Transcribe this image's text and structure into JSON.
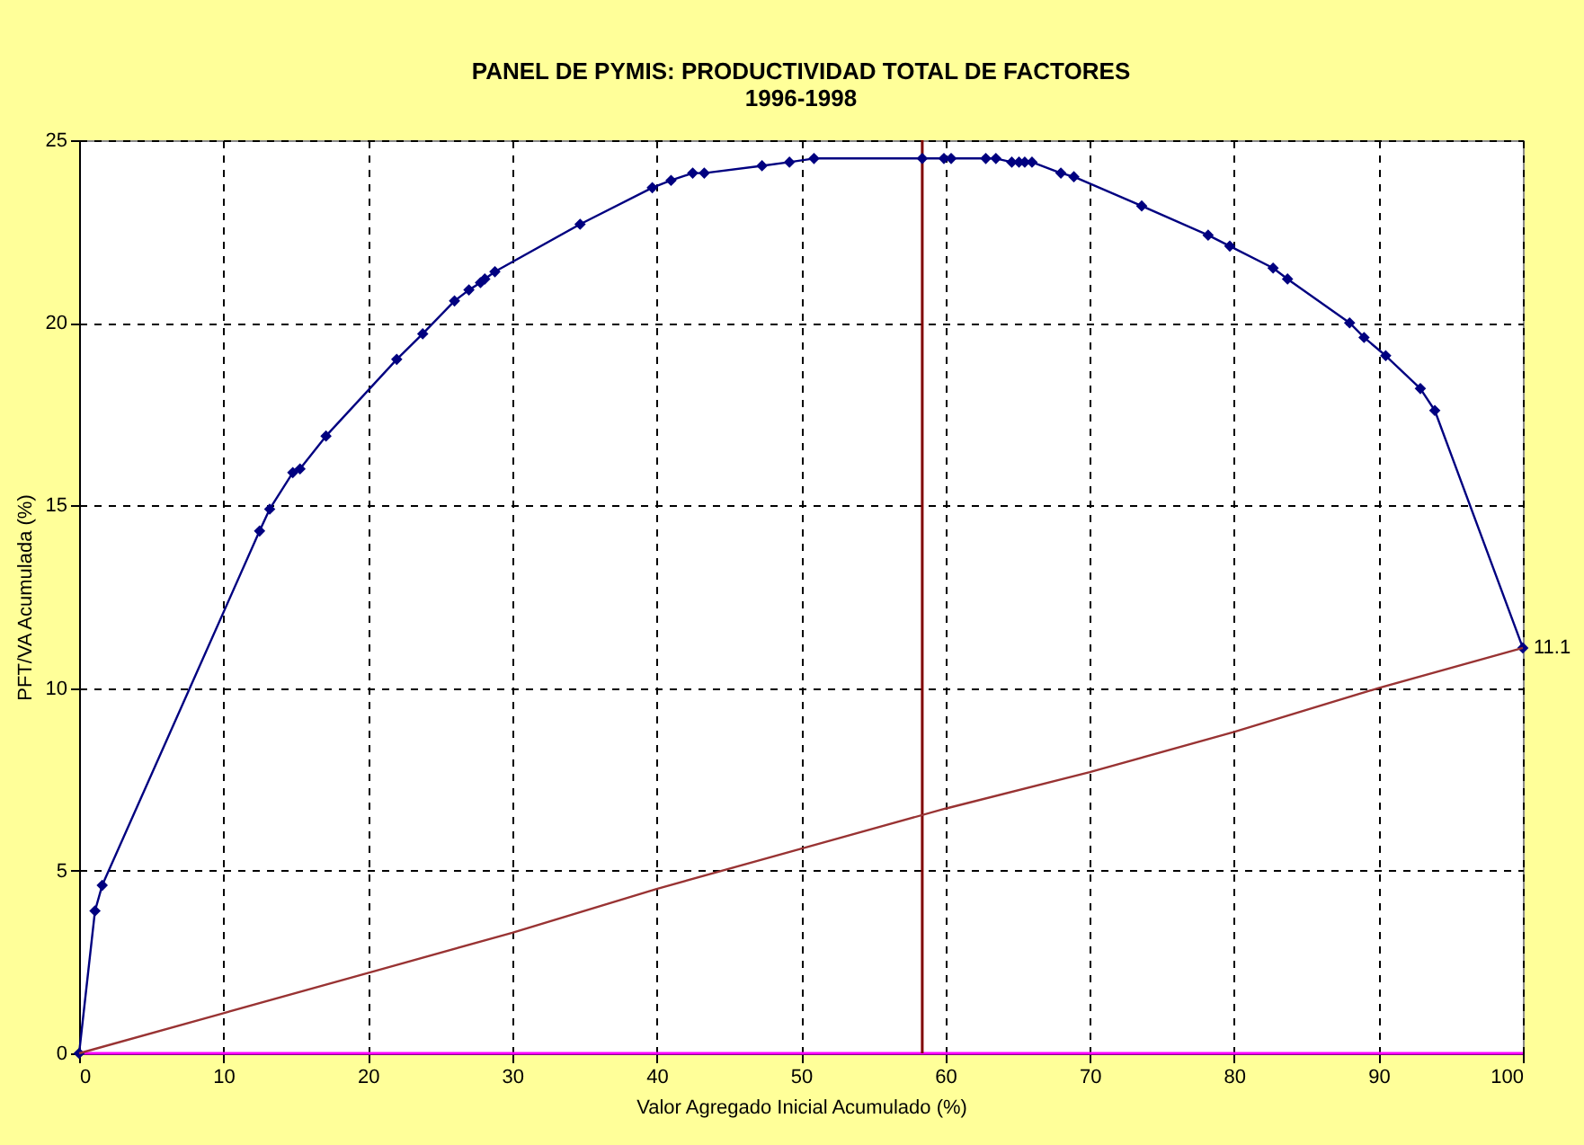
{
  "chart_data": {
    "type": "line",
    "title": "PANEL DE PYMIS: PRODUCTIVIDAD TOTAL DE FACTORES",
    "subtitle": "1996-1998",
    "xlabel": "Valor Agregado Inicial Acumulado (%)",
    "ylabel": "PFT/VA Acumulada (%)",
    "xlim": [
      0,
      100
    ],
    "xticks": [
      0,
      10,
      20,
      30,
      40,
      50,
      60,
      70,
      80,
      90,
      100
    ],
    "ylim": [
      0,
      25
    ],
    "yticks": [
      0,
      5,
      10,
      15,
      20,
      25
    ],
    "grid": true,
    "marker": "diamond",
    "series": [
      {
        "color": "#000080",
        "x": [
          0,
          1.1,
          1.6,
          12.5,
          13.2,
          14.8,
          15.3,
          17.1,
          22.0,
          23.8,
          26.0,
          27.0,
          27.8,
          28.1,
          28.8,
          34.7,
          39.7,
          41.0,
          42.5,
          43.3,
          47.3,
          49.2,
          50.9,
          58.4,
          59.9,
          60.4,
          62.8,
          63.5,
          64.6,
          65.1,
          65.5,
          66.0,
          68.0,
          68.9,
          73.6,
          78.2,
          79.7,
          82.7,
          83.7,
          88.0,
          89.0,
          90.5,
          92.9,
          93.9,
          100
        ],
        "values": [
          0,
          3.9,
          4.6,
          14.3,
          14.9,
          15.9,
          16.0,
          16.9,
          19.0,
          19.7,
          20.6,
          20.9,
          21.1,
          21.2,
          21.4,
          22.7,
          23.7,
          23.9,
          24.1,
          24.1,
          24.3,
          24.4,
          24.5,
          24.5,
          24.5,
          24.5,
          24.5,
          24.5,
          24.4,
          24.4,
          24.4,
          24.4,
          24.1,
          24.0,
          23.2,
          22.4,
          22.1,
          21.5,
          21.2,
          20.0,
          19.6,
          19.1,
          18.2,
          17.6,
          11.1
        ]
      },
      {
        "color": "#993333",
        "marker": "none",
        "x": [
          0,
          10,
          20,
          30,
          40,
          50,
          60,
          70,
          80,
          90,
          100
        ],
        "values": [
          0,
          1.1,
          2.2,
          3.3,
          4.5,
          5.6,
          6.7,
          7.7,
          8.8,
          10.0,
          11.1
        ]
      }
    ],
    "ref_lines": [
      {
        "axis": "x",
        "value": 58.4,
        "color": "#800000"
      },
      {
        "axis": "y",
        "value": 0,
        "color": "#ff00ff"
      }
    ],
    "annotations": [
      {
        "text": "11.1",
        "x": 100,
        "y": 11.1
      }
    ]
  }
}
